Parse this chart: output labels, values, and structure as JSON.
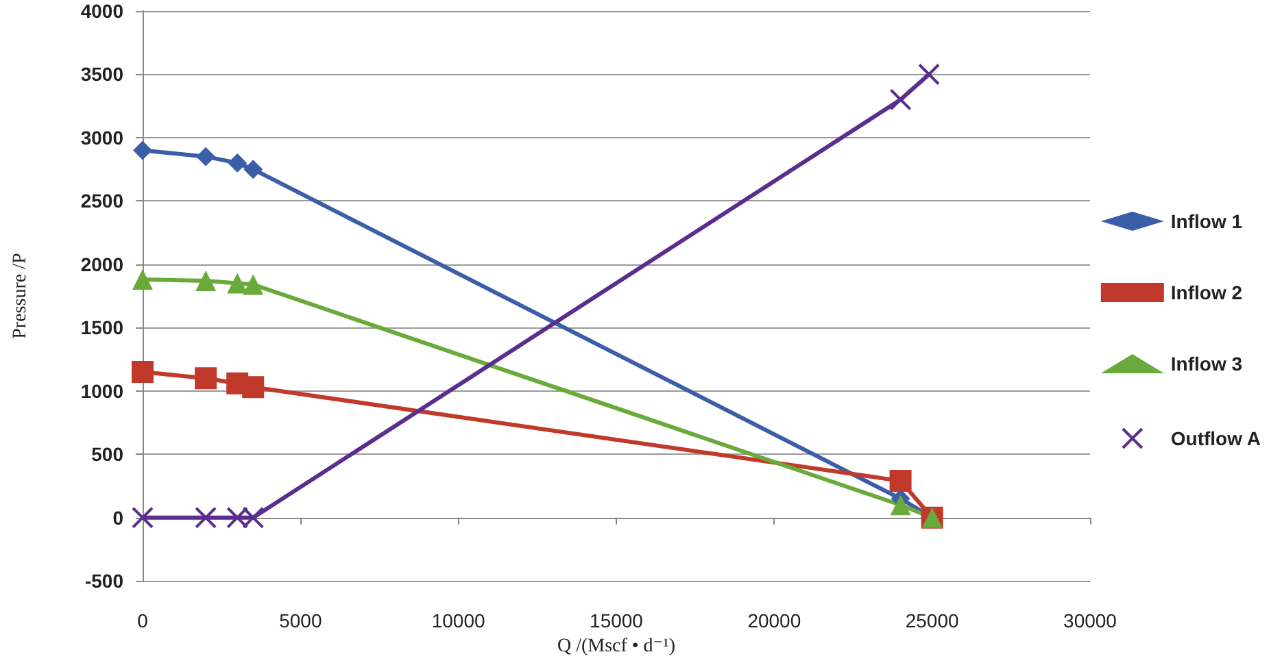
{
  "chart_data": {
    "type": "line",
    "xlabel": "Q /(Mscf • d⁻¹)",
    "ylabel": "Pressure /P",
    "x": [
      0,
      2000,
      3000,
      3500,
      24000,
      25000
    ],
    "series": [
      {
        "name": "Inflow 1",
        "color": "#3a5ea8",
        "marker": "diamond",
        "values": [
          2900,
          2850,
          2800,
          2750,
          150,
          0
        ]
      },
      {
        "name": "Inflow 2",
        "color": "#c0392b",
        "marker": "square",
        "values": [
          1150,
          1100,
          1060,
          1030,
          290,
          0
        ]
      },
      {
        "name": "Inflow 3",
        "color": "#6aaa3a",
        "marker": "triangle",
        "values": [
          1880,
          1870,
          1850,
          1840,
          100,
          0
        ]
      },
      {
        "name": "Outflow A",
        "color": "#5b2d8e",
        "marker": "cross",
        "x": [
          0,
          2000,
          3000,
          3500,
          24000,
          24900
        ],
        "values": [
          0,
          0,
          0,
          0,
          3300,
          3500
        ]
      }
    ],
    "xlim": [
      0,
      30000
    ],
    "xticks": [
      0,
      5000,
      10000,
      15000,
      20000,
      25000,
      30000
    ],
    "ylim": [
      -500,
      4000
    ],
    "yticks": [
      -500,
      0,
      500,
      1000,
      1500,
      2000,
      2500,
      3000,
      3500,
      4000
    ],
    "grid": "y",
    "legend": "right",
    "line_style": "solid"
  }
}
